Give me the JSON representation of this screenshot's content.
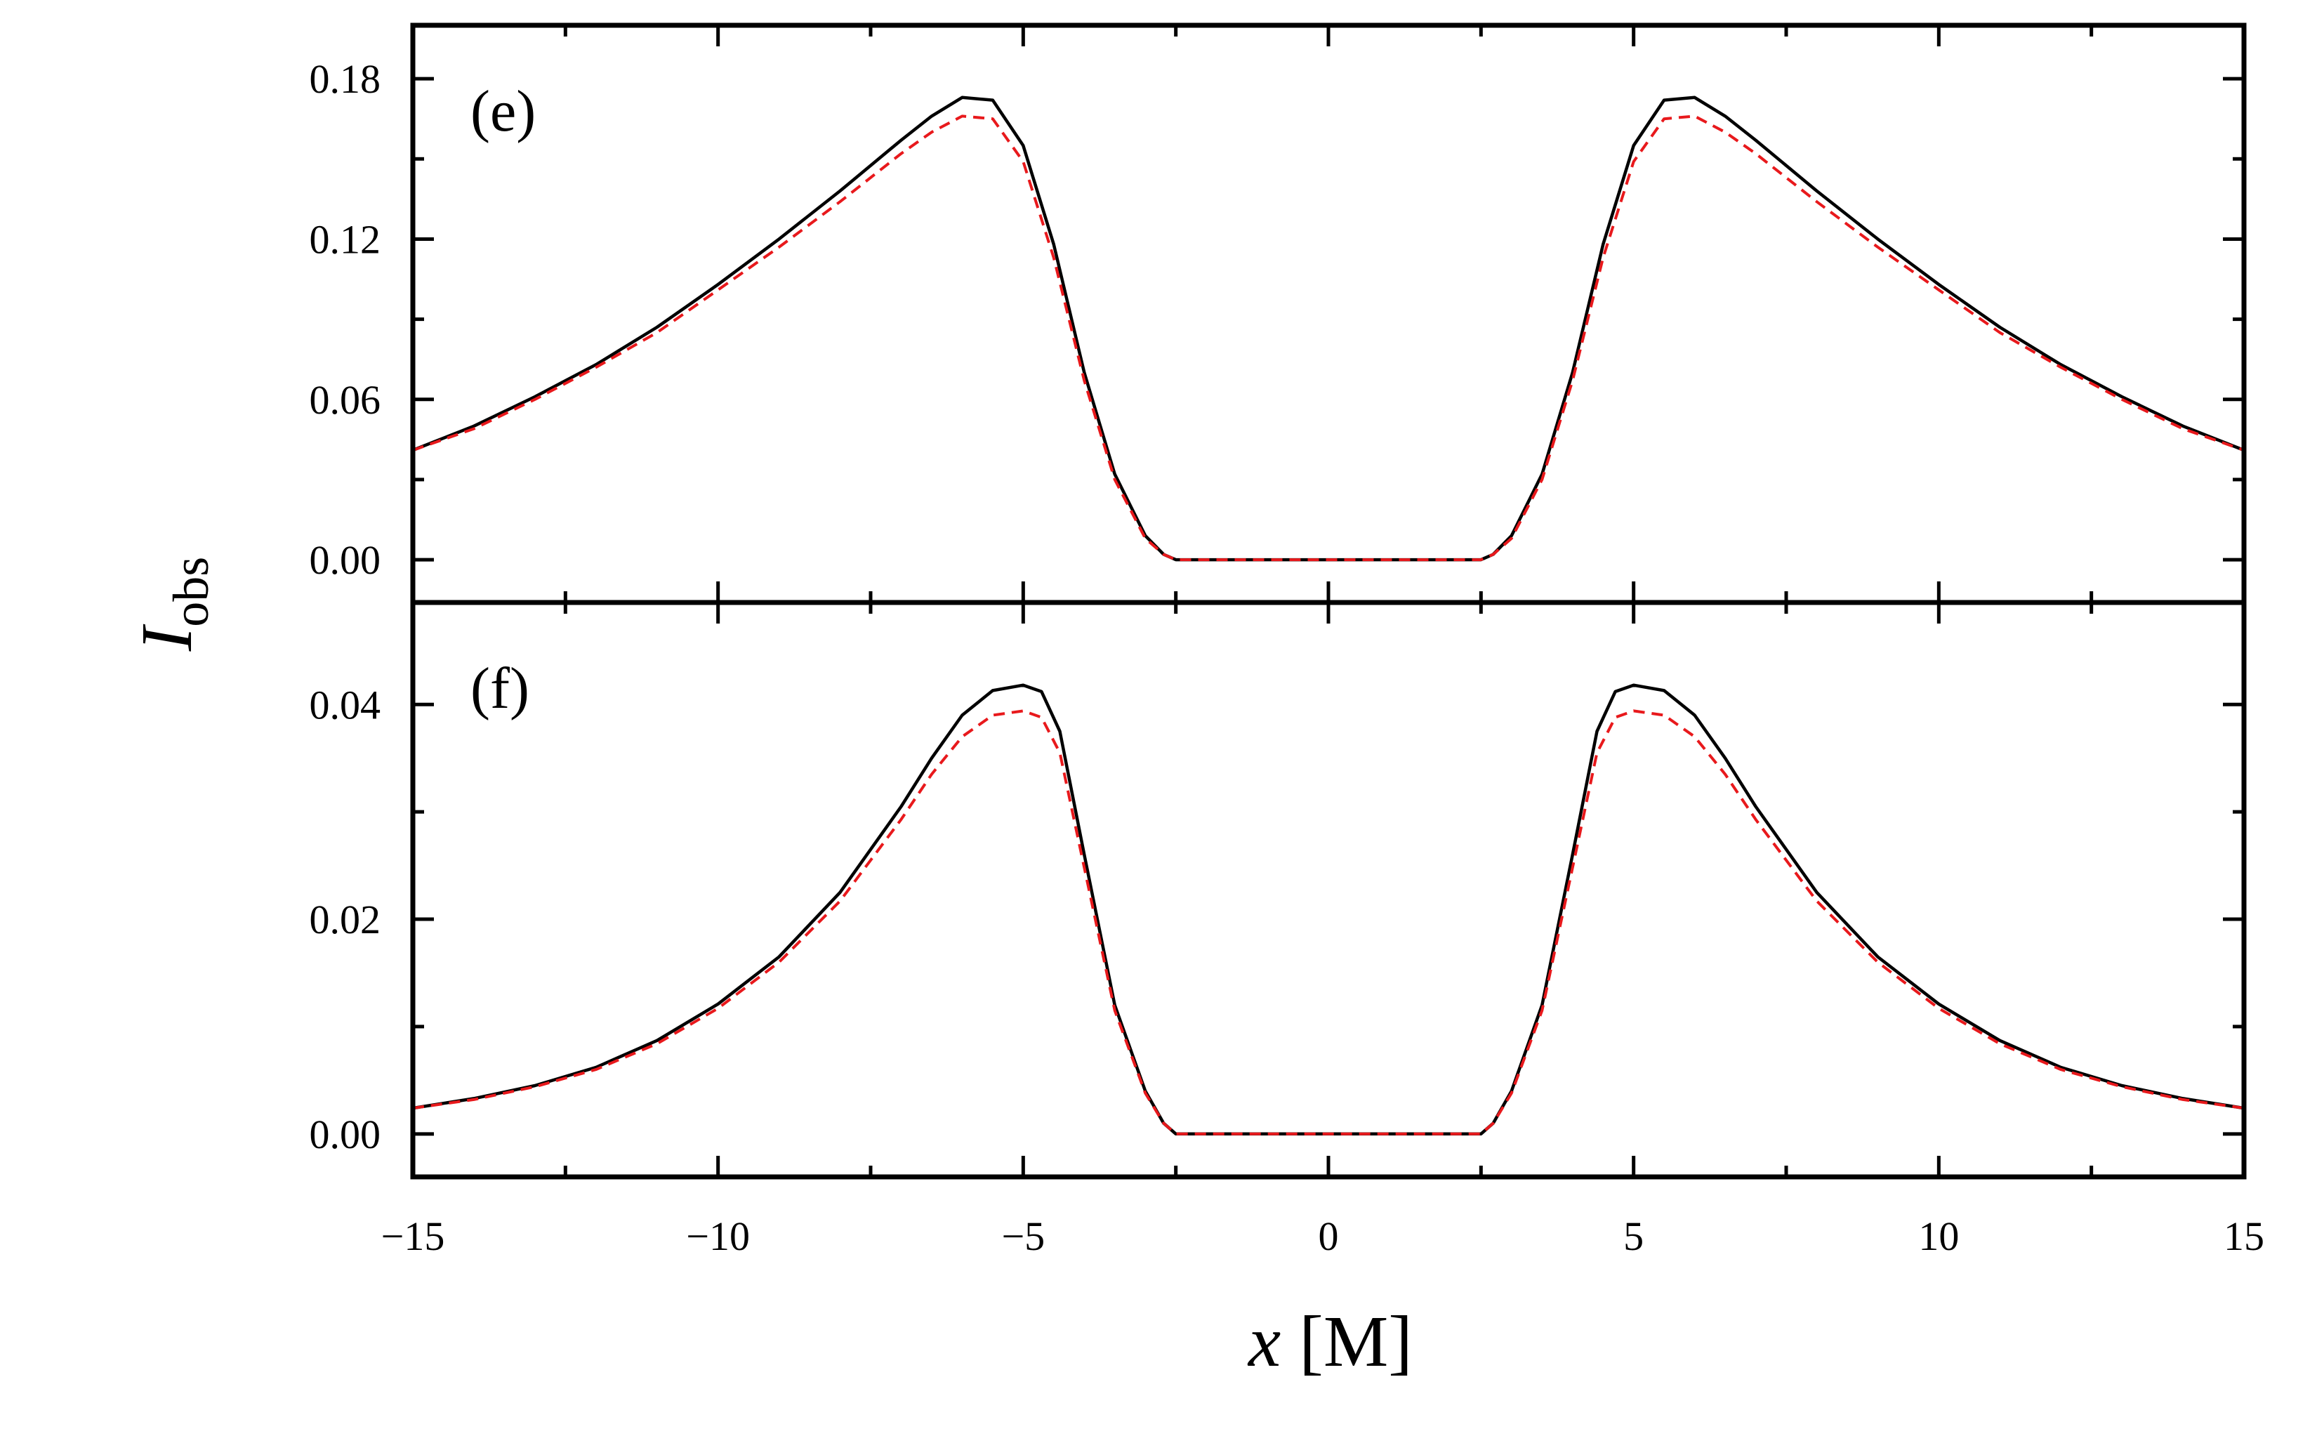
{
  "figure": {
    "xlabel": {
      "var": "x",
      "unit": " [M]"
    },
    "ylabel": {
      "var": "I",
      "sub": "obs"
    },
    "colors": {
      "solid": "#000000",
      "dashed": "#e8191c",
      "frame": "#000000"
    }
  },
  "chart_data": [
    {
      "type": "line",
      "panel_label": "(e)",
      "xlim": [
        -15,
        15
      ],
      "ylim": [
        -0.016,
        0.2
      ],
      "x_ticks": [
        -15,
        -10,
        -5,
        0,
        5,
        10,
        15
      ],
      "y_ticks": [
        0.0,
        0.06,
        0.12,
        0.18
      ],
      "y_tick_labels": [
        "0.00",
        "0.06",
        "0.12",
        "0.18"
      ],
      "grid": false,
      "series": [
        {
          "style": "solid",
          "color": "#000000",
          "x": [
            -15,
            -14,
            -13,
            -12,
            -11,
            -10,
            -9,
            -8,
            -7,
            -6.5,
            -6,
            -5.5,
            -5,
            -4.5,
            -4,
            -3.5,
            -3,
            -2.7,
            -2.5,
            0,
            2.5,
            2.7,
            3,
            3.5,
            4,
            4.5,
            5,
            5.5,
            6,
            6.5,
            7,
            8,
            9,
            10,
            11,
            12,
            13,
            14,
            15
          ],
          "y": [
            0.041,
            0.05,
            0.061,
            0.073,
            0.087,
            0.103,
            0.12,
            0.138,
            0.157,
            0.166,
            0.173,
            0.172,
            0.155,
            0.118,
            0.07,
            0.032,
            0.009,
            0.002,
            0.0,
            0.0,
            0.0,
            0.002,
            0.009,
            0.032,
            0.07,
            0.118,
            0.155,
            0.172,
            0.173,
            0.166,
            0.157,
            0.138,
            0.12,
            0.103,
            0.087,
            0.073,
            0.061,
            0.05,
            0.041
          ]
        },
        {
          "style": "dashed",
          "color": "#e8191c",
          "x": [
            -15,
            -14,
            -13,
            -12,
            -11,
            -10,
            -9,
            -8,
            -7,
            -6.5,
            -6,
            -5.5,
            -5,
            -4.5,
            -4,
            -3.5,
            -3,
            -2.7,
            -2.5,
            0,
            2.5,
            2.7,
            3,
            3.5,
            4,
            4.5,
            5,
            5.5,
            6,
            6.5,
            7,
            8,
            9,
            10,
            11,
            12,
            13,
            14,
            15
          ],
          "y": [
            0.041,
            0.049,
            0.06,
            0.072,
            0.085,
            0.101,
            0.117,
            0.134,
            0.152,
            0.16,
            0.166,
            0.165,
            0.149,
            0.113,
            0.067,
            0.03,
            0.008,
            0.002,
            0.0,
            0.0,
            0.0,
            0.002,
            0.008,
            0.03,
            0.067,
            0.113,
            0.149,
            0.165,
            0.166,
            0.16,
            0.152,
            0.134,
            0.117,
            0.101,
            0.085,
            0.072,
            0.06,
            0.049,
            0.041
          ]
        }
      ]
    },
    {
      "type": "line",
      "panel_label": "(f)",
      "xlim": [
        -15,
        15
      ],
      "ylim": [
        -0.004,
        0.0495
      ],
      "x_ticks": [
        -15,
        -10,
        -5,
        0,
        5,
        10,
        15
      ],
      "x_tick_labels": [
        "−15",
        "−10",
        "−5",
        "0",
        "5",
        "10",
        "15"
      ],
      "y_ticks": [
        0.0,
        0.02,
        0.04
      ],
      "y_tick_labels": [
        "0.00",
        "0.02",
        "0.04"
      ],
      "grid": false,
      "series": [
        {
          "style": "solid",
          "color": "#000000",
          "x": [
            -15,
            -14,
            -13,
            -12,
            -11,
            -10,
            -9,
            -8,
            -7,
            -6.5,
            -6,
            -5.5,
            -5,
            -4.7,
            -4.4,
            -4,
            -3.5,
            -3,
            -2.7,
            -2.5,
            0,
            2.5,
            2.7,
            3,
            3.5,
            4,
            4.4,
            4.7,
            5,
            5.5,
            6,
            6.5,
            7,
            8,
            9,
            10,
            11,
            12,
            13,
            14,
            15
          ],
          "y": [
            0.0024,
            0.0033,
            0.0045,
            0.0062,
            0.0087,
            0.0121,
            0.0165,
            0.0225,
            0.0305,
            0.035,
            0.039,
            0.0413,
            0.0418,
            0.0412,
            0.0375,
            0.026,
            0.012,
            0.004,
            0.001,
            0.0,
            0.0,
            0.0,
            0.001,
            0.004,
            0.012,
            0.026,
            0.0375,
            0.0412,
            0.0418,
            0.0413,
            0.039,
            0.035,
            0.0305,
            0.0225,
            0.0165,
            0.0121,
            0.0087,
            0.0062,
            0.0045,
            0.0033,
            0.0024
          ]
        },
        {
          "style": "dashed",
          "color": "#e8191c",
          "x": [
            -15,
            -14,
            -13,
            -12,
            -11,
            -10,
            -9,
            -8,
            -7,
            -6.5,
            -6,
            -5.5,
            -5,
            -4.7,
            -4.4,
            -4,
            -3.5,
            -3,
            -2.7,
            -2.5,
            0,
            2.5,
            2.7,
            3,
            3.5,
            4,
            4.4,
            4.7,
            5,
            5.5,
            6,
            6.5,
            7,
            8,
            9,
            10,
            11,
            12,
            13,
            14,
            15
          ],
          "y": [
            0.0024,
            0.0032,
            0.0044,
            0.006,
            0.0084,
            0.0117,
            0.016,
            0.0217,
            0.0293,
            0.0335,
            0.037,
            0.039,
            0.0394,
            0.0388,
            0.0355,
            0.0248,
            0.0115,
            0.0038,
            0.001,
            0.0,
            0.0,
            0.0,
            0.001,
            0.0038,
            0.0115,
            0.0248,
            0.0355,
            0.0388,
            0.0394,
            0.039,
            0.037,
            0.0335,
            0.0293,
            0.0217,
            0.016,
            0.0117,
            0.0084,
            0.006,
            0.0044,
            0.0032,
            0.0024
          ]
        }
      ]
    }
  ]
}
